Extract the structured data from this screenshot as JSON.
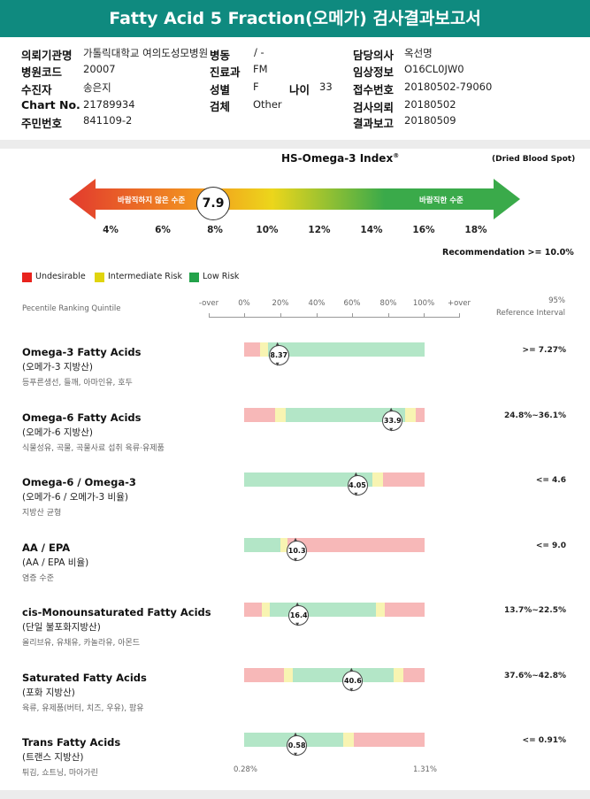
{
  "title": "Fatty Acid 5 Fraction(오메가) 검사결과보고서",
  "patient": {
    "institution_label": "의뢰기관명",
    "institution_value": "가톨릭대학교 여의도성모병원",
    "ward_label": "병동",
    "ward_value": "/ -",
    "doctor_label": "담당의사",
    "doctor_value": "옥선명",
    "hospital_code_label": "병원코드",
    "hospital_code_value": "20007",
    "dept_label": "진료과",
    "dept_value": "FM",
    "clinical_info_label": "임상정보",
    "clinical_info_value": "O16CL0JW0",
    "examinee_label": "수진자",
    "examinee_value": "송은지",
    "sex_label": "성별",
    "sex_value": "F",
    "age_label": "나이",
    "age_value": "33",
    "receipt_label": "접수번호",
    "receipt_value": "20180502-79060",
    "chart_label": "Chart No.",
    "chart_value": "21789934",
    "specimen_label": "검체",
    "specimen_value": "Other",
    "request_date_label": "검사의뢰",
    "request_date_value": "20180502",
    "id_label": "주민번호",
    "id_value": "841109-2",
    "report_date_label": "결과보고",
    "report_date_value": "20180509"
  },
  "index": {
    "title": "HS-Omega-3 Index",
    "title_sup": "®",
    "note": "(Dried Blood Spot)",
    "left_label": "바람직하지 않은 수준",
    "right_label": "바람직한 수준",
    "value": 7.9,
    "value_text": "7.9",
    "ticks": [
      "4%",
      "6%",
      "8%",
      "10%",
      "12%",
      "14%",
      "16%",
      "18%"
    ],
    "recommendation": "Recommendation  >= 10.0%",
    "colors": {
      "red": "#e23a2e",
      "orange": "#f39a1e",
      "yellow": "#ecd61b",
      "green": "#3aaa4a"
    }
  },
  "legend": [
    {
      "label": "Undesirable",
      "color": "#e8231d"
    },
    {
      "label": "Intermediate Risk",
      "color": "#e0d40e"
    },
    {
      "label": "Low Risk",
      "color": "#23a24a"
    }
  ],
  "column_headers": {
    "ranking": "Pecentile Ranking Quintile",
    "scale": [
      "-over",
      "0%",
      "20%",
      "40%",
      "60%",
      "80%",
      "100%",
      "+over"
    ],
    "ref_line1": "95%",
    "ref_line2": "Reference Interval"
  },
  "bar_colors": {
    "red": "#f7b8b8",
    "yellow": "#f8f4b2",
    "green": "#b3e6c7"
  },
  "metrics": [
    {
      "name": "Omega-3 Fatty Acids",
      "sub": "(오메가-3 지방산)",
      "desc": "등푸른생선, 들깨, 아마인유, 호두",
      "value_text": "8.37",
      "position": 0.19,
      "reference": ">= 7.27%",
      "zones": [
        {
          "from": 0,
          "to": 0.09,
          "c": "red"
        },
        {
          "from": 0.09,
          "to": 0.13,
          "c": "yellow"
        },
        {
          "from": 0.13,
          "to": 1,
          "c": "green"
        }
      ]
    },
    {
      "name": "Omega-6 Fatty Acids",
      "sub": "(오메가-6 지방산)",
      "desc": "식물성유, 곡물, 곡물사료 섭취 육류·유제품",
      "value_text": "33.9",
      "position": 0.82,
      "reference": "24.8%~36.1%",
      "zones": [
        {
          "from": 0,
          "to": 0.17,
          "c": "red"
        },
        {
          "from": 0.17,
          "to": 0.23,
          "c": "yellow"
        },
        {
          "from": 0.23,
          "to": 0.89,
          "c": "green"
        },
        {
          "from": 0.89,
          "to": 0.95,
          "c": "yellow"
        },
        {
          "from": 0.95,
          "to": 1,
          "c": "red"
        }
      ]
    },
    {
      "name": "Omega-6 / Omega-3",
      "sub": "(오메가-6 / 오메가-3 비율)",
      "desc": "지방산 균형",
      "value_text": "4.05",
      "position": 0.625,
      "reference": "<= 4.6",
      "zones": [
        {
          "from": 0,
          "to": 0.71,
          "c": "green"
        },
        {
          "from": 0.71,
          "to": 0.77,
          "c": "yellow"
        },
        {
          "from": 0.77,
          "to": 1,
          "c": "red"
        }
      ]
    },
    {
      "name": "AA / EPA",
      "sub": "(AA / EPA 비율)",
      "desc": "염증 수준",
      "value_text": "10.3",
      "position": 0.29,
      "reference": "<= 9.0",
      "zones": [
        {
          "from": 0,
          "to": 0.2,
          "c": "green"
        },
        {
          "from": 0.2,
          "to": 0.24,
          "c": "yellow"
        },
        {
          "from": 0.24,
          "to": 1,
          "c": "red"
        }
      ]
    },
    {
      "name": "cis-Monounsaturated Fatty Acids",
      "sub": "(단일 불포화지방산)",
      "desc": "올리브유, 유채유, 카놀라유, 아몬드",
      "value_text": "16.4",
      "position": 0.3,
      "reference": "13.7%~22.5%",
      "zones": [
        {
          "from": 0,
          "to": 0.1,
          "c": "red"
        },
        {
          "from": 0.1,
          "to": 0.14,
          "c": "yellow"
        },
        {
          "from": 0.14,
          "to": 0.73,
          "c": "green"
        },
        {
          "from": 0.73,
          "to": 0.78,
          "c": "yellow"
        },
        {
          "from": 0.78,
          "to": 1,
          "c": "red"
        }
      ]
    },
    {
      "name": "Saturated Fatty Acids",
      "sub": "(포화 지방산)",
      "desc": "육류, 유제품(버터, 치즈, 우유), 팜유",
      "value_text": "40.6",
      "position": 0.6,
      "reference": "37.6%~42.8%",
      "zones": [
        {
          "from": 0,
          "to": 0.22,
          "c": "red"
        },
        {
          "from": 0.22,
          "to": 0.27,
          "c": "yellow"
        },
        {
          "from": 0.27,
          "to": 0.83,
          "c": "green"
        },
        {
          "from": 0.83,
          "to": 0.88,
          "c": "yellow"
        },
        {
          "from": 0.88,
          "to": 1,
          "c": "red"
        }
      ]
    },
    {
      "name": "Trans Fatty Acids",
      "sub": "(트랜스 지방산)",
      "desc": "튀김, 쇼트닝, 마아가린",
      "value_text": "0.58",
      "position": 0.29,
      "reference": "<= 0.91%",
      "zones": [
        {
          "from": 0,
          "to": 0.55,
          "c": "green"
        },
        {
          "from": 0.55,
          "to": 0.61,
          "c": "yellow"
        },
        {
          "from": 0.61,
          "to": 1,
          "c": "red"
        }
      ]
    }
  ],
  "bottom_scale": {
    "left": "0.28%",
    "right": "1.31%"
  }
}
